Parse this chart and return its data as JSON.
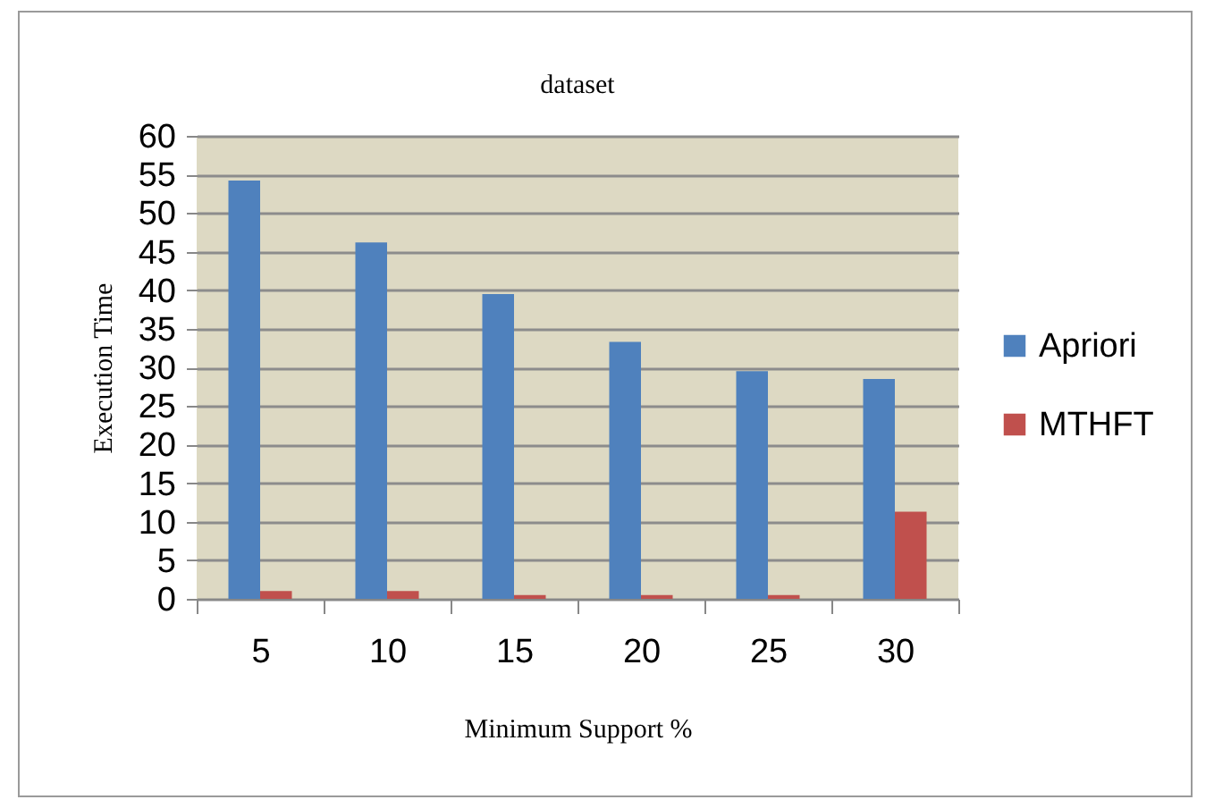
{
  "chart_data": {
    "type": "bar",
    "title": "dataset",
    "xlabel": "Minimum Support %",
    "ylabel": "Execution Time",
    "categories": [
      "5",
      "10",
      "15",
      "20",
      "25",
      "30"
    ],
    "series": [
      {
        "name": "Apriori",
        "color": "#4f81bd",
        "values": [
          54.2,
          46.2,
          39.5,
          33.3,
          29.5,
          28.5
        ]
      },
      {
        "name": "MTHFT",
        "color": "#c0504d",
        "values": [
          1,
          1,
          0.5,
          0.5,
          0.5,
          11.3
        ]
      }
    ],
    "ylim": [
      0,
      60
    ],
    "yticks": [
      0,
      5,
      10,
      15,
      20,
      25,
      30,
      35,
      40,
      45,
      50,
      55,
      60
    ],
    "grid": "y",
    "legend": "right"
  }
}
